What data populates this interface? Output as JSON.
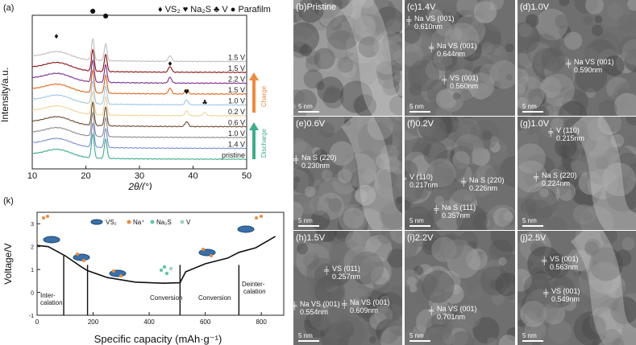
{
  "panel_a": {
    "label": "(a)",
    "legend": [
      {
        "glyph": "♦",
        "text": "VS₂"
      },
      {
        "glyph": "♥",
        "text": "Na₂S"
      },
      {
        "glyph": "♣",
        "text": "V"
      },
      {
        "glyph": "●",
        "text": "Parafilm"
      }
    ],
    "ylabel": "Intensity/a.u.",
    "xlabel": "2θ/(°)",
    "charge_label": "Charge",
    "discharge_label": "Discharge",
    "charge_color": "#f08a3c",
    "discharge_color": "#3cae8c"
  },
  "panel_k": {
    "label": "(k)",
    "ylabel": "Voltage/V",
    "xlabel": "Specific capacity (mAh·g⁻¹)",
    "legend": [
      "VS₂",
      "Na⁺",
      "Na₂S",
      "V"
    ],
    "regions": [
      "Inter-\ncalation",
      "Conversion",
      "Conversion",
      "Deinter-\ncalation"
    ]
  },
  "chart_data": [
    {
      "type": "line",
      "panel": "a",
      "xlabel": "2θ/(°)",
      "ylabel": "Intensity/a.u.",
      "xlim": [
        10,
        50
      ],
      "xticks": [
        10,
        20,
        30,
        40,
        50
      ],
      "series": [
        {
          "name": "pristine",
          "color": "#3cae8c"
        },
        {
          "name": "1.4 V",
          "color": "#7a8fd0"
        },
        {
          "name": "1.0 V",
          "color": "#8c8c8c"
        },
        {
          "name": "0.6 V",
          "color": "#6b4a2a"
        },
        {
          "name": "0.2 V",
          "color": "#f0d29a"
        },
        {
          "name": "1.0 V",
          "color": "#9ec8e6"
        },
        {
          "name": "1.5 V",
          "color": "#e0661a"
        },
        {
          "name": "2.2 V",
          "color": "#7a2a8a"
        },
        {
          "name": "1.5 V",
          "color": "#8a1010"
        },
        {
          "name": "1.5 V",
          "color": "#bdbdbd"
        }
      ],
      "peaks": [
        {
          "x": 14.5,
          "marker": "♦"
        },
        {
          "x": 21.3,
          "marker": "●"
        },
        {
          "x": 23.7,
          "marker": "●"
        },
        {
          "x": 35.7,
          "marker": "♦"
        },
        {
          "x": 38.8,
          "marker": "♥"
        },
        {
          "x": 42.2,
          "marker": "♣"
        }
      ]
    },
    {
      "type": "line",
      "panel": "k",
      "xlabel": "Specific capacity (mAh·g⁻¹)",
      "ylabel": "Voltage/V",
      "xlim": [
        0,
        880
      ],
      "ylim": [
        -1,
        3.5
      ],
      "xticks": [
        0,
        200,
        400,
        600,
        800
      ],
      "yticks": [
        -1,
        0,
        1,
        2,
        3
      ],
      "series": [
        {
          "name": "",
          "x": [
            0,
            40,
            100,
            160,
            180,
            250,
            350,
            450,
            510,
            530,
            600,
            680,
            720,
            780,
            830,
            850
          ],
          "y": [
            2.05,
            2.0,
            1.6,
            1.1,
            0.95,
            0.65,
            0.45,
            0.4,
            0.42,
            0.9,
            1.25,
            1.5,
            1.75,
            1.95,
            2.3,
            2.45
          ]
        }
      ],
      "dividers_x": [
        180,
        510,
        720
      ]
    }
  ],
  "tem_panels": [
    {
      "label": "(b)Pristine",
      "scalebar": "5 nm",
      "annotations": []
    },
    {
      "label": "(c)1.4V",
      "scalebar": "5 nm",
      "annotations": [
        "Na VS (001)\n0.610nm",
        "Na VS (001)\n0.644nm",
        "VS (001)\n0.560nm"
      ]
    },
    {
      "label": "(d)1.0V",
      "scalebar": "5 nm",
      "annotations": [
        "Na VS (001)\n0.590nm"
      ]
    },
    {
      "label": "(e)0.6V",
      "scalebar": "5 nm",
      "annotations": [
        "Na S (220)\n0.230nm"
      ]
    },
    {
      "label": "(f)0.2V",
      "scalebar": "5 nm",
      "annotations": [
        "V (110)\n0.217nm",
        "Na S (220)\n0.226nm",
        "Na S (111)\n0.357nm"
      ]
    },
    {
      "label": "(g)1.0V",
      "scalebar": "5 nm",
      "annotations": [
        "V (110)\n0.215nm",
        "Na S (220)\n0.224nm"
      ]
    },
    {
      "label": "(h)1.5V",
      "scalebar": "5 nm",
      "annotations": [
        "VS (011)\n0.257nm",
        "Na VS (001)\n0.554nm",
        "Na VS (001)\n0.609nm"
      ]
    },
    {
      "label": "(i)2.2V",
      "scalebar": "5 nm",
      "annotations": [
        "Na VS (001)\n0.701nm"
      ]
    },
    {
      "label": "(j)2.5V",
      "scalebar": "5 nm",
      "annotations": [
        "VS (001)\n0.563nm",
        "VS (001)\n0.549nm"
      ]
    }
  ]
}
